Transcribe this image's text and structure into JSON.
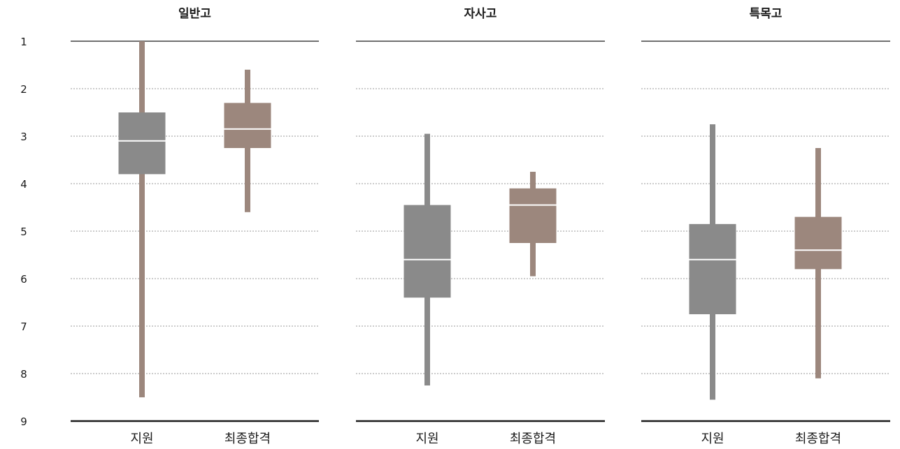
{
  "chart_data": {
    "type": "boxplot",
    "y_axis": {
      "range": [
        1,
        9
      ],
      "inverted": true,
      "ticks": [
        "1",
        "2",
        "3",
        "4",
        "5",
        "6",
        "7",
        "8",
        "9"
      ],
      "grid": "dotted"
    },
    "categories": [
      "지원",
      "최종합격"
    ],
    "colors": {
      "지원": "#8a8a8a",
      "최종합격": "#9c877d",
      "median": "#ffffff",
      "grid": "#9a9a9a"
    },
    "panels": [
      {
        "title": "일반고",
        "boxes": [
          {
            "label": "지원",
            "box_color": "#8a8a8a",
            "whisker_color": "#9c877d",
            "whisker_low": 1.0,
            "q1": 2.5,
            "median": 3.1,
            "q3": 3.8,
            "whisker_high": 8.5
          },
          {
            "label": "최종합격",
            "box_color": "#9c877d",
            "whisker_color": "#9c877d",
            "whisker_low": 1.6,
            "q1": 2.3,
            "median": 2.85,
            "q3": 3.25,
            "whisker_high": 4.6
          }
        ]
      },
      {
        "title": "자사고",
        "boxes": [
          {
            "label": "지원",
            "box_color": "#8a8a8a",
            "whisker_color": "#8a8a8a",
            "whisker_low": 2.95,
            "q1": 4.45,
            "median": 5.6,
            "q3": 6.4,
            "whisker_high": 8.25
          },
          {
            "label": "최종합격",
            "box_color": "#9c877d",
            "whisker_color": "#9c877d",
            "whisker_low": 3.75,
            "q1": 4.1,
            "median": 4.45,
            "q3": 5.25,
            "whisker_high": 5.95
          }
        ]
      },
      {
        "title": "특목고",
        "boxes": [
          {
            "label": "지원",
            "box_color": "#8a8a8a",
            "whisker_color": "#8a8a8a",
            "whisker_low": 2.75,
            "q1": 4.85,
            "median": 5.6,
            "q3": 6.75,
            "whisker_high": 8.55
          },
          {
            "label": "최종합격",
            "box_color": "#9c877d",
            "whisker_color": "#9c877d",
            "whisker_low": 3.25,
            "q1": 4.7,
            "median": 5.4,
            "q3": 5.8,
            "whisker_high": 8.1
          }
        ]
      }
    ]
  }
}
